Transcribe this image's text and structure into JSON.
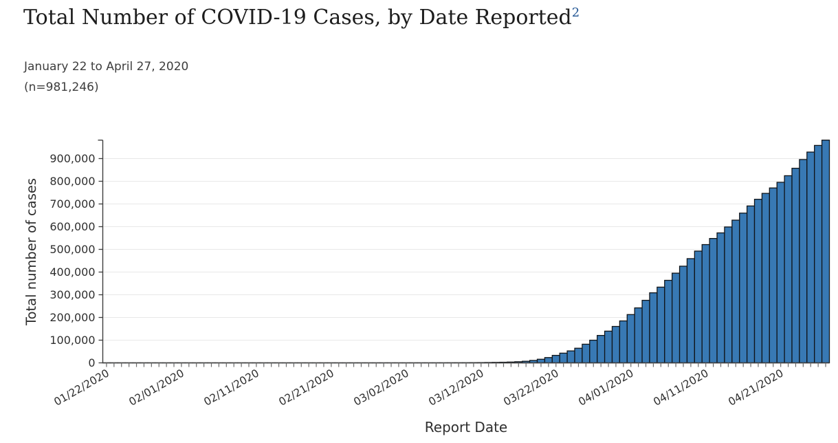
{
  "header": {
    "title": "Total Number of COVID-19 Cases, by Date Reported",
    "footnote_ref": "2",
    "date_range": "January 22 to April 27, 2020",
    "n_label": "(n=981,246)"
  },
  "chart_data": {
    "type": "bar",
    "title": "Total Number of COVID-19 Cases, by Date Reported",
    "subtitle": "January 22 to April 27, 2020",
    "n_total": 981246,
    "xlabel": "Report Date",
    "ylabel": "Total number of cases",
    "ylim": [
      0,
      981246
    ],
    "grid": true,
    "legend": false,
    "yticks": [
      0,
      100000,
      200000,
      300000,
      400000,
      500000,
      600000,
      700000,
      800000,
      900000
    ],
    "ytick_labels": [
      "0",
      "100,000",
      "200,000",
      "300,000",
      "400,000",
      "500,000",
      "600,000",
      "700,000",
      "800,000",
      "900,000"
    ],
    "xtick_label_every": 10,
    "xtick_labels_shown": [
      "01/22/2020",
      "02/01/2020",
      "02/11/2020",
      "02/21/2020",
      "03/02/2020",
      "03/12/2020",
      "03/22/2020",
      "04/01/2020",
      "04/11/2020",
      "04/21/2020"
    ],
    "categories": [
      "01/22/2020",
      "01/23/2020",
      "01/24/2020",
      "01/25/2020",
      "01/26/2020",
      "01/27/2020",
      "01/28/2020",
      "01/29/2020",
      "01/30/2020",
      "01/31/2020",
      "02/01/2020",
      "02/02/2020",
      "02/03/2020",
      "02/04/2020",
      "02/05/2020",
      "02/06/2020",
      "02/07/2020",
      "02/08/2020",
      "02/09/2020",
      "02/10/2020",
      "02/11/2020",
      "02/12/2020",
      "02/13/2020",
      "02/14/2020",
      "02/15/2020",
      "02/16/2020",
      "02/17/2020",
      "02/18/2020",
      "02/19/2020",
      "02/20/2020",
      "02/21/2020",
      "02/22/2020",
      "02/23/2020",
      "02/24/2020",
      "02/25/2020",
      "02/26/2020",
      "02/27/2020",
      "02/28/2020",
      "02/29/2020",
      "03/01/2020",
      "03/02/2020",
      "03/03/2020",
      "03/04/2020",
      "03/05/2020",
      "03/06/2020",
      "03/07/2020",
      "03/08/2020",
      "03/09/2020",
      "03/10/2020",
      "03/11/2020",
      "03/12/2020",
      "03/13/2020",
      "03/14/2020",
      "03/15/2020",
      "03/16/2020",
      "03/17/2020",
      "03/18/2020",
      "03/19/2020",
      "03/20/2020",
      "03/21/2020",
      "03/22/2020",
      "03/23/2020",
      "03/24/2020",
      "03/25/2020",
      "03/26/2020",
      "03/27/2020",
      "03/28/2020",
      "03/29/2020",
      "03/30/2020",
      "03/31/2020",
      "04/01/2020",
      "04/02/2020",
      "04/03/2020",
      "04/04/2020",
      "04/05/2020",
      "04/06/2020",
      "04/07/2020",
      "04/08/2020",
      "04/09/2020",
      "04/10/2020",
      "04/11/2020",
      "04/12/2020",
      "04/13/2020",
      "04/14/2020",
      "04/15/2020",
      "04/16/2020",
      "04/17/2020",
      "04/18/2020",
      "04/19/2020",
      "04/20/2020",
      "04/21/2020",
      "04/22/2020",
      "04/23/2020",
      "04/24/2020",
      "04/25/2020",
      "04/26/2020",
      "04/27/2020"
    ],
    "values": [
      1,
      1,
      2,
      2,
      5,
      5,
      5,
      5,
      5,
      7,
      8,
      8,
      11,
      11,
      11,
      11,
      11,
      12,
      12,
      12,
      12,
      13,
      13,
      13,
      13,
      13,
      13,
      13,
      13,
      13,
      15,
      15,
      15,
      15,
      15,
      15,
      16,
      16,
      24,
      30,
      43,
      57,
      85,
      111,
      175,
      252,
      353,
      497,
      647,
      938,
      1215,
      1629,
      2183,
      2770,
      3613,
      4996,
      7087,
      10764,
      15935,
      23398,
      33038,
      42782,
      52690,
      64475,
      82149,
      99863,
      120854,
      139773,
      160472,
      184796,
      212802,
      242182,
      275586,
      308650,
      333593,
      363598,
      395011,
      425889,
      459165,
      492416,
      521089,
      548013,
      572587,
      598670,
      628693,
      659703,
      691197,
      720630,
      746625,
      770534,
      795313,
      824438,
      857307,
      895766,
      928619,
      957875,
      981246
    ],
    "bar_color": "#3879b4",
    "bar_border_color": "#101418",
    "grid_color": "#e8e8e8",
    "axis_color": "#3d3d3d",
    "tick_color": "#6b6b6b",
    "label_color": "#2f2f2f",
    "title_color": "#1d1d1d",
    "footnote_color": "#205493"
  }
}
